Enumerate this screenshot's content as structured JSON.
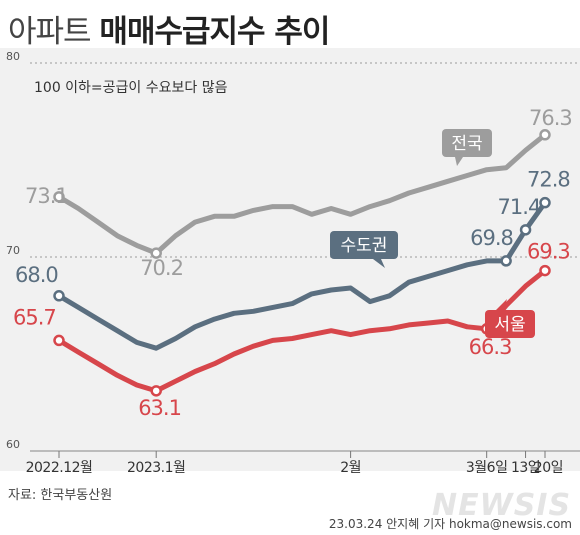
{
  "header": {
    "title_light": "아파트",
    "title_bold": "매매수급지수 추이"
  },
  "chart_data": {
    "type": "line",
    "annotation": "100 이하=공급이 수요보다 많음",
    "y_ticks": [
      "80",
      "70",
      "60"
    ],
    "ylim": [
      60,
      80
    ],
    "x_tick_labels": [
      "2022.12월",
      "2023.1월",
      "2월",
      "3월6일",
      "13일",
      "20일"
    ],
    "x_tick_positions": [
      0,
      5,
      15,
      22,
      24,
      25
    ],
    "n_points": 26,
    "series": [
      {
        "name": "전국",
        "color": "#9d9d9d",
        "values": [
          73.1,
          72.5,
          71.8,
          71.1,
          70.6,
          70.2,
          71.1,
          71.8,
          72.1,
          72.1,
          72.4,
          72.6,
          72.6,
          72.2,
          72.5,
          72.2,
          72.6,
          72.9,
          73.3,
          73.6,
          73.9,
          74.2,
          74.5,
          74.6,
          75.5,
          76.3
        ],
        "labels": [
          {
            "index": 0,
            "text": "73.1",
            "dx": -34,
            "dy": 6
          },
          {
            "index": 5,
            "text": "70.2",
            "dx": -16,
            "dy": 22
          },
          {
            "index": 25,
            "text": "76.3",
            "dx": -16,
            "dy": -10
          }
        ]
      },
      {
        "name": "수도권",
        "color": "#5b6f80",
        "values": [
          68.0,
          67.4,
          66.8,
          66.2,
          65.6,
          65.3,
          65.8,
          66.4,
          66.8,
          67.1,
          67.2,
          67.4,
          67.6,
          68.1,
          68.3,
          68.4,
          67.7,
          68.0,
          68.7,
          69.0,
          69.3,
          69.6,
          69.8,
          69.8,
          71.4,
          72.8
        ],
        "labels": [
          {
            "index": 0,
            "text": "68.0",
            "dx": -44,
            "dy": -14
          },
          {
            "index": 23,
            "text": "69.8",
            "dx": -36,
            "dy": -16
          },
          {
            "index": 24,
            "text": "71.4",
            "dx": -28,
            "dy": -16
          },
          {
            "index": 25,
            "text": "72.8",
            "dx": -18,
            "dy": -16
          }
        ]
      },
      {
        "name": "서울",
        "color": "#d7464b",
        "values": [
          65.7,
          65.1,
          64.5,
          63.9,
          63.4,
          63.1,
          63.6,
          64.1,
          64.5,
          65.0,
          65.4,
          65.7,
          65.8,
          66.0,
          66.2,
          66.0,
          66.2,
          66.3,
          66.5,
          66.6,
          66.7,
          66.4,
          66.3,
          67.5,
          68.5,
          69.3
        ],
        "labels": [
          {
            "index": 0,
            "text": "65.7",
            "dx": -46,
            "dy": -16
          },
          {
            "index": 5,
            "text": "63.1",
            "dx": -18,
            "dy": 24
          },
          {
            "index": 22,
            "text": "66.3",
            "dx": -18,
            "dy": 25
          },
          {
            "index": 25,
            "text": "69.3",
            "dx": -18,
            "dy": -12
          }
        ]
      }
    ],
    "callouts": [
      {
        "series_index": 0,
        "text": "전국",
        "anchor_index": 22
      },
      {
        "series_index": 1,
        "text": "수도권",
        "anchor_index": 14
      },
      {
        "series_index": 2,
        "text": "서울",
        "anchor_index": 23
      }
    ]
  },
  "footer": {
    "source": "자료: 한국부동산원",
    "logo": "NEWSIS",
    "credit": "23.03.24 안지혜 기자 hokma@newsis.com"
  }
}
